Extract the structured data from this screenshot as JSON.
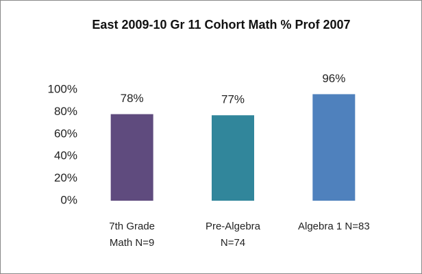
{
  "chart_data": {
    "type": "bar",
    "title": "East 2009-10 Gr 11 Cohort Math % Prof 2007",
    "categories": [
      "7th Grade Math N=9",
      "Pre-Algebra N=74",
      "Algebra 1 N=83"
    ],
    "values": [
      78,
      77,
      96
    ],
    "value_labels": [
      "78%",
      "77%",
      "96%"
    ],
    "colors": [
      "#5f4b7e",
      "#31869b",
      "#4f81bd"
    ],
    "ylim": [
      0,
      100
    ],
    "yticks": [
      {
        "value": 0,
        "label": "0%"
      },
      {
        "value": 20,
        "label": "20%"
      },
      {
        "value": 40,
        "label": "40%"
      },
      {
        "value": 60,
        "label": "60%"
      },
      {
        "value": 80,
        "label": "80%"
      },
      {
        "value": 100,
        "label": "100%"
      }
    ],
    "grid": false
  }
}
